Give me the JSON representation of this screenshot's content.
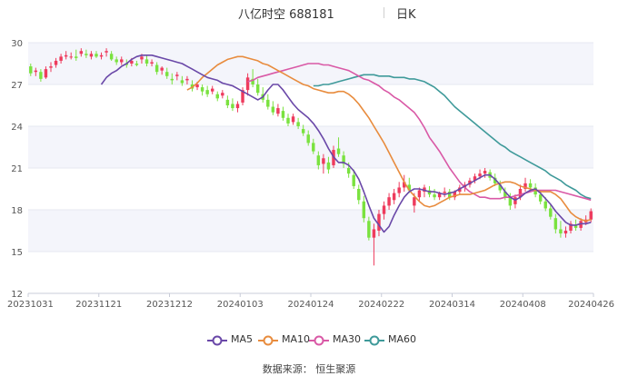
{
  "header": {
    "stock_name": "八亿时空 688181",
    "period": "日K"
  },
  "footer": {
    "source": "数据来源：  恒生聚源"
  },
  "colors": {
    "up": "#ee3b5d",
    "down": "#7ae23f",
    "ma5": "#6a48a8",
    "ma10": "#e88c3e",
    "ma30": "#d959a6",
    "ma60": "#3f9a9a",
    "band": "#f4f5fb",
    "grid": "#e6e8f0"
  },
  "chart_data": {
    "type": "candlestick",
    "x_tick_labels": [
      "20231031",
      "20231121",
      "20231212",
      "20240103",
      "20240124",
      "20240222",
      "20240314",
      "20240408",
      "20240426"
    ],
    "y_ticks": [
      12,
      15,
      18,
      21,
      24,
      27,
      30
    ],
    "ylim": [
      12,
      30
    ],
    "grid": true,
    "legend_position": "bottom",
    "series_names": [
      "MA5",
      "MA10",
      "MA30",
      "MA60"
    ],
    "candles_ohlc": [
      [
        28.3,
        28.5,
        27.6,
        27.8
      ],
      [
        27.9,
        28.2,
        27.6,
        28.0
      ],
      [
        27.9,
        28.1,
        27.2,
        27.4
      ],
      [
        27.5,
        28.3,
        27.4,
        28.1
      ],
      [
        28.2,
        28.6,
        27.9,
        28.3
      ],
      [
        28.4,
        28.9,
        28.2,
        28.7
      ],
      [
        28.7,
        29.2,
        28.5,
        29.0
      ],
      [
        29.0,
        29.4,
        28.8,
        29.1
      ],
      [
        29.0,
        29.3,
        28.8,
        29.0
      ],
      [
        29.0,
        29.5,
        28.7,
        28.9
      ],
      [
        29.2,
        29.6,
        29.0,
        29.4
      ],
      [
        29.2,
        29.5,
        28.9,
        29.1
      ],
      [
        29.0,
        29.4,
        28.8,
        29.2
      ],
      [
        29.2,
        29.4,
        28.9,
        29.0
      ],
      [
        29.0,
        29.3,
        28.8,
        29.1
      ],
      [
        29.3,
        29.6,
        29.0,
        29.4
      ],
      [
        29.2,
        29.4,
        28.7,
        28.8
      ],
      [
        28.8,
        29.0,
        28.4,
        28.6
      ],
      [
        28.6,
        29.0,
        28.4,
        28.8
      ],
      [
        28.5,
        28.8,
        28.2,
        28.4
      ],
      [
        28.5,
        28.9,
        28.3,
        28.7
      ],
      [
        28.5,
        28.7,
        28.3,
        28.4
      ],
      [
        28.8,
        29.2,
        28.5,
        29.0
      ],
      [
        28.8,
        29.1,
        28.3,
        28.5
      ],
      [
        28.5,
        28.8,
        28.3,
        28.6
      ],
      [
        28.4,
        28.6,
        27.7,
        27.9
      ],
      [
        28.0,
        28.3,
        27.7,
        28.2
      ],
      [
        27.9,
        28.2,
        27.4,
        27.6
      ],
      [
        27.4,
        27.8,
        27.0,
        27.3
      ],
      [
        27.6,
        27.9,
        27.3,
        27.7
      ],
      [
        27.3,
        27.6,
        26.9,
        27.1
      ],
      [
        27.3,
        27.6,
        27.0,
        27.4
      ],
      [
        27.0,
        27.3,
        26.5,
        26.7
      ],
      [
        26.8,
        27.2,
        26.6,
        27.0
      ],
      [
        26.8,
        27.0,
        26.2,
        26.5
      ],
      [
        26.6,
        26.9,
        26.1,
        26.3
      ],
      [
        26.5,
        26.9,
        26.3,
        26.7
      ],
      [
        26.3,
        26.5,
        25.8,
        26.0
      ],
      [
        26.2,
        26.6,
        26.0,
        26.4
      ],
      [
        25.9,
        26.2,
        25.3,
        25.5
      ],
      [
        25.6,
        26.0,
        25.1,
        25.3
      ],
      [
        25.3,
        25.8,
        25.0,
        25.6
      ],
      [
        25.7,
        26.8,
        25.5,
        26.6
      ],
      [
        26.6,
        27.8,
        26.2,
        27.5
      ],
      [
        27.4,
        28.1,
        26.8,
        27.0
      ],
      [
        27.0,
        27.4,
        26.2,
        26.4
      ],
      [
        26.3,
        26.8,
        25.7,
        25.9
      ],
      [
        25.9,
        26.3,
        25.2,
        25.4
      ],
      [
        25.4,
        25.8,
        24.8,
        25.0
      ],
      [
        24.9,
        25.6,
        24.7,
        25.3
      ],
      [
        25.1,
        25.4,
        24.4,
        24.6
      ],
      [
        24.6,
        24.9,
        24.0,
        24.2
      ],
      [
        24.3,
        24.9,
        24.1,
        24.7
      ],
      [
        24.3,
        24.6,
        23.8,
        24.0
      ],
      [
        23.8,
        24.1,
        23.3,
        23.5
      ],
      [
        23.4,
        23.7,
        22.6,
        22.8
      ],
      [
        22.8,
        23.1,
        22.0,
        22.2
      ],
      [
        21.9,
        22.2,
        20.9,
        21.2
      ],
      [
        21.3,
        22.0,
        20.6,
        21.7
      ],
      [
        21.4,
        21.8,
        20.6,
        20.9
      ],
      [
        21.2,
        22.6,
        21.0,
        22.3
      ],
      [
        22.4,
        23.2,
        21.8,
        22.0
      ],
      [
        21.9,
        22.2,
        21.0,
        21.3
      ],
      [
        21.0,
        21.4,
        20.3,
        20.6
      ],
      [
        20.5,
        20.9,
        19.5,
        19.7
      ],
      [
        19.5,
        19.8,
        18.4,
        18.7
      ],
      [
        18.6,
        19.0,
        17.1,
        17.4
      ],
      [
        17.2,
        17.5,
        15.8,
        16.0
      ],
      [
        16.0,
        17.0,
        14.0,
        16.6
      ],
      [
        16.5,
        18.0,
        16.1,
        17.7
      ],
      [
        17.7,
        18.6,
        17.3,
        18.3
      ],
      [
        18.3,
        19.2,
        18.0,
        18.9
      ],
      [
        18.7,
        19.5,
        18.4,
        19.2
      ],
      [
        19.2,
        20.0,
        18.9,
        19.6
      ],
      [
        19.6,
        20.5,
        19.3,
        20.0
      ],
      [
        19.8,
        20.3,
        19.2,
        19.4
      ],
      [
        18.3,
        19.2,
        17.8,
        18.9
      ],
      [
        18.9,
        19.6,
        18.6,
        19.4
      ],
      [
        19.3,
        19.8,
        18.9,
        19.6
      ],
      [
        19.4,
        19.7,
        18.9,
        19.1
      ],
      [
        19.1,
        19.5,
        18.7,
        18.9
      ],
      [
        18.9,
        19.3,
        18.7,
        19.2
      ],
      [
        19.2,
        19.6,
        18.9,
        19.3
      ],
      [
        19.3,
        19.5,
        18.7,
        18.9
      ],
      [
        18.9,
        19.4,
        18.7,
        19.3
      ],
      [
        19.3,
        19.8,
        19.1,
        19.6
      ],
      [
        19.6,
        20.0,
        19.3,
        19.8
      ],
      [
        19.8,
        20.3,
        19.6,
        20.1
      ],
      [
        20.1,
        20.6,
        19.9,
        20.4
      ],
      [
        20.4,
        20.9,
        20.2,
        20.6
      ],
      [
        20.6,
        21.0,
        20.3,
        20.8
      ],
      [
        20.7,
        20.9,
        20.1,
        20.3
      ],
      [
        20.3,
        20.6,
        19.7,
        19.9
      ],
      [
        19.8,
        20.1,
        19.2,
        19.4
      ],
      [
        19.3,
        19.6,
        18.7,
        18.9
      ],
      [
        18.9,
        19.2,
        18.0,
        18.3
      ],
      [
        18.4,
        19.1,
        18.1,
        18.9
      ],
      [
        18.9,
        19.8,
        18.7,
        19.5
      ],
      [
        19.5,
        20.3,
        19.3,
        19.9
      ],
      [
        19.9,
        20.2,
        19.4,
        19.6
      ],
      [
        19.6,
        19.9,
        18.9,
        19.1
      ],
      [
        19.1,
        19.4,
        18.4,
        18.6
      ],
      [
        18.6,
        18.9,
        17.9,
        18.1
      ],
      [
        18.1,
        18.4,
        17.3,
        17.5
      ],
      [
        17.4,
        17.7,
        16.3,
        16.6
      ],
      [
        16.6,
        17.2,
        16.0,
        16.3
      ],
      [
        16.3,
        16.8,
        16.0,
        16.5
      ],
      [
        16.5,
        17.2,
        16.3,
        17.0
      ],
      [
        16.9,
        17.3,
        16.5,
        16.7
      ],
      [
        16.7,
        17.4,
        16.5,
        17.2
      ],
      [
        17.1,
        17.6,
        16.9,
        17.3
      ],
      [
        17.3,
        18.1,
        17.1,
        17.9
      ]
    ],
    "ma5": [
      27.0,
      27.5,
      27.8,
      28.0,
      28.3,
      28.5,
      28.8,
      29.0,
      29.1,
      29.1,
      29.1,
      29.0,
      28.9,
      28.8,
      28.7,
      28.6,
      28.5,
      28.3,
      28.1,
      27.9,
      27.7,
      27.5,
      27.4,
      27.3,
      27.1,
      27.0,
      26.9,
      26.7,
      26.5,
      26.3,
      26.1,
      25.9,
      26.1,
      26.6,
      27.0,
      27.0,
      26.6,
      26.1,
      25.6,
      25.2,
      24.9,
      24.6,
      24.2,
      23.7,
      23.1,
      22.4,
      21.8,
      21.4,
      21.4,
      21.2,
      20.8,
      20.2,
      19.3,
      18.3,
      17.4,
      16.9,
      16.4,
      16.8,
      17.6,
      18.3,
      18.9,
      19.3,
      19.5,
      19.5,
      19.4,
      19.3,
      19.3,
      19.2,
      19.1,
      19.2,
      19.3,
      19.5,
      19.7,
      19.9,
      20.1,
      20.3,
      20.5,
      20.5,
      20.2,
      19.8,
      19.3,
      18.9,
      18.7,
      18.9,
      19.2,
      19.4,
      19.5,
      19.2,
      18.8,
      18.4,
      17.9,
      17.5,
      17.1,
      16.9,
      16.9,
      17.0,
      17.0,
      17.1
    ],
    "ma10": [
      26.6,
      26.8,
      27.1,
      27.5,
      27.8,
      28.1,
      28.4,
      28.6,
      28.8,
      28.9,
      29.0,
      29.0,
      28.9,
      28.8,
      28.7,
      28.5,
      28.4,
      28.2,
      28.0,
      27.8,
      27.6,
      27.4,
      27.2,
      27.0,
      26.9,
      26.7,
      26.6,
      26.5,
      26.4,
      26.4,
      26.5,
      26.5,
      26.3,
      26.0,
      25.6,
      25.1,
      24.6,
      24.0,
      23.4,
      22.8,
      22.1,
      21.4,
      20.7,
      20.0,
      19.4,
      19.0,
      18.6,
      18.3,
      18.2,
      18.3,
      18.5,
      18.7,
      18.9,
      19.0,
      19.1,
      19.1,
      19.1,
      19.2,
      19.3,
      19.4,
      19.6,
      19.8,
      19.9,
      20.0,
      20.0,
      19.9,
      19.7,
      19.6,
      19.5,
      19.4,
      19.3,
      19.3,
      19.3,
      19.1,
      18.8,
      18.3,
      17.8,
      17.5,
      17.3,
      17.2,
      17.3
    ],
    "ma30": [
      27.2,
      27.3,
      27.5,
      27.6,
      27.7,
      27.8,
      27.9,
      28.0,
      28.1,
      28.2,
      28.3,
      28.4,
      28.5,
      28.5,
      28.5,
      28.4,
      28.4,
      28.3,
      28.2,
      28.1,
      28.0,
      27.8,
      27.6,
      27.4,
      27.3,
      27.1,
      26.9,
      26.6,
      26.4,
      26.1,
      25.9,
      25.6,
      25.3,
      25.0,
      24.5,
      23.9,
      23.2,
      22.7,
      22.2,
      21.6,
      21.0,
      20.5,
      20.0,
      19.6,
      19.3,
      19.1,
      18.9,
      18.9,
      18.8,
      18.8,
      18.8,
      18.9,
      18.9,
      19.0,
      19.1,
      19.2,
      19.3,
      19.4,
      19.4,
      19.4,
      19.4,
      19.4,
      19.3,
      19.2,
      19.1,
      19.0,
      18.9,
      18.8,
      18.7
    ],
    "ma60": [
      26.9,
      26.9,
      27.0,
      27.0,
      27.1,
      27.2,
      27.3,
      27.4,
      27.5,
      27.6,
      27.7,
      27.7,
      27.7,
      27.6,
      27.6,
      27.6,
      27.5,
      27.5,
      27.5,
      27.4,
      27.4,
      27.3,
      27.2,
      27.0,
      26.8,
      26.5,
      26.2,
      25.8,
      25.4,
      25.1,
      24.8,
      24.5,
      24.2,
      23.9,
      23.6,
      23.3,
      23.0,
      22.7,
      22.5,
      22.2,
      22.0,
      21.8,
      21.6,
      21.4,
      21.2,
      21.0,
      20.8,
      20.5,
      20.3,
      20.1,
      19.8,
      19.6,
      19.4,
      19.1,
      18.9,
      18.8
    ]
  }
}
